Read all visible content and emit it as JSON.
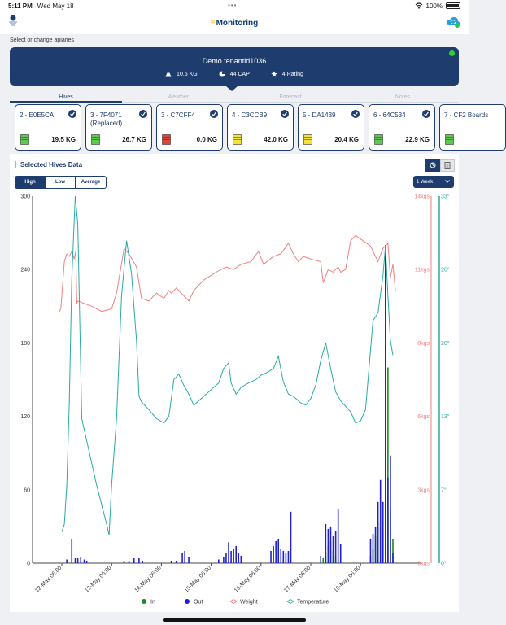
{
  "status_bar": {
    "time": "5:11 PM",
    "date": "Wed May 18",
    "battery": "100%"
  },
  "nav": {
    "title": "Monitoring",
    "title_prefix": "≡",
    "logo_icon": "apiary-logo-icon",
    "sync_icon": "cloud-sync-icon"
  },
  "apiary": {
    "select_label": "Select or change apiaries",
    "name": "Demo tenantid1036",
    "weight": "10.5 KG",
    "capacity": "44 CAP",
    "rating": "4 Rating",
    "status_color": "#2ed12e"
  },
  "tabs": [
    {
      "label": "Hives",
      "active": true
    },
    {
      "label": "Weather",
      "active": false
    },
    {
      "label": "Forecast",
      "active": false
    },
    {
      "label": "Notes",
      "active": false
    }
  ],
  "hives": [
    {
      "title": "2 - E0E5CA",
      "weight": "19.5 KG",
      "color": "#5ec94e",
      "checked": true
    },
    {
      "title": "3 - 7F4071 (Replaced)",
      "weight": "26.7 KG",
      "color": "#5ec94e",
      "checked": true
    },
    {
      "title": "3 - C7CFF4",
      "weight": "0.0 KG",
      "color": "#e2403a",
      "checked": true
    },
    {
      "title": "4 - C3CCB9",
      "weight": "42.0 KG",
      "color": "#f2e43a",
      "checked": true
    },
    {
      "title": "5 - DA1439",
      "weight": "20.4 KG",
      "color": "#f2e43a",
      "checked": true
    },
    {
      "title": "6 - 64C534",
      "weight": "22.9 KG",
      "color": "#5ec94e",
      "checked": true
    },
    {
      "title": "7 - CF2 Boards",
      "weight": "",
      "color": "#5ec94e",
      "checked": false
    }
  ],
  "chart_panel": {
    "title": "Selected Hives Data",
    "modes": [
      {
        "label": "High",
        "active": true
      },
      {
        "label": "Low",
        "active": false
      },
      {
        "label": "Average",
        "active": false
      }
    ],
    "period": "1 Week"
  },
  "chart_data": {
    "type": "line",
    "x_ticks": [
      "12-May 06:00",
      "13-May 06:00",
      "14-May 06:00",
      "15-May 06:00",
      "16-May 06:00",
      "17-May 06:00",
      "18-May 06:00"
    ],
    "y_left": {
      "ticks": [
        "0",
        "60",
        "120",
        "180",
        "240",
        "300"
      ],
      "range": [
        0,
        300
      ]
    },
    "y_weight": {
      "ticks": [
        "0kgs",
        "3kgs",
        "6kgs",
        "8kgs",
        "11kgs",
        "14kgs"
      ],
      "range": [
        0,
        14
      ]
    },
    "y_temp": {
      "ticks": [
        "0°",
        "7°",
        "13°",
        "20°",
        "26°",
        "33°"
      ],
      "range": [
        0,
        33
      ]
    },
    "series": [
      {
        "name": "In",
        "kind": "bar",
        "axis": "left",
        "color": "#1c8a1c",
        "points": [
          [
            5.25,
            4
          ],
          [
            5.3,
            8
          ],
          [
            5.35,
            14
          ],
          [
            5.4,
            18
          ],
          [
            5.45,
            10
          ],
          [
            5.5,
            6
          ],
          [
            6.2,
            6
          ],
          [
            6.25,
            12
          ],
          [
            6.3,
            22
          ],
          [
            6.35,
            34
          ],
          [
            6.4,
            30
          ],
          [
            6.45,
            26
          ],
          [
            6.5,
            36
          ],
          [
            6.55,
            160
          ],
          [
            6.6,
            45
          ],
          [
            6.65,
            20
          ]
        ]
      },
      {
        "name": "Out",
        "kind": "bar",
        "axis": "left",
        "color": "#2222cc",
        "points": [
          [
            0.1,
            3
          ],
          [
            0.2,
            20
          ],
          [
            0.27,
            4
          ],
          [
            0.32,
            4
          ],
          [
            0.38,
            5
          ],
          [
            0.45,
            3
          ],
          [
            0.5,
            2
          ],
          [
            1.25,
            2
          ],
          [
            1.35,
            2
          ],
          [
            1.45,
            4
          ],
          [
            1.55,
            4
          ],
          [
            1.62,
            2
          ],
          [
            2.2,
            2
          ],
          [
            2.3,
            2
          ],
          [
            2.42,
            8
          ],
          [
            2.47,
            10
          ],
          [
            2.55,
            5
          ],
          [
            3.15,
            3
          ],
          [
            3.25,
            5
          ],
          [
            3.3,
            8
          ],
          [
            3.35,
            17
          ],
          [
            3.4,
            10
          ],
          [
            3.45,
            12
          ],
          [
            3.5,
            14
          ],
          [
            3.55,
            8
          ],
          [
            3.6,
            6
          ],
          [
            4.2,
            10
          ],
          [
            4.25,
            14
          ],
          [
            4.3,
            18
          ],
          [
            4.35,
            20
          ],
          [
            4.4,
            12
          ],
          [
            4.45,
            10
          ],
          [
            4.5,
            8
          ],
          [
            4.55,
            10
          ],
          [
            4.6,
            42
          ],
          [
            5.2,
            6
          ],
          [
            5.3,
            32
          ],
          [
            5.35,
            28
          ],
          [
            5.4,
            30
          ],
          [
            5.45,
            22
          ],
          [
            5.5,
            26
          ],
          [
            5.55,
            44
          ],
          [
            5.6,
            16
          ],
          [
            6.2,
            20
          ],
          [
            6.25,
            24
          ],
          [
            6.3,
            30
          ],
          [
            6.35,
            50
          ],
          [
            6.4,
            68
          ],
          [
            6.45,
            50
          ],
          [
            6.5,
            260
          ],
          [
            6.55,
            70
          ],
          [
            6.6,
            88
          ],
          [
            6.65,
            8
          ]
        ]
      },
      {
        "name": "Weight",
        "kind": "line",
        "axis": "weight",
        "color": "#f08080",
        "points": [
          [
            -0.05,
            9.6
          ],
          [
            -0.02,
            9.7
          ],
          [
            0.05,
            11.5
          ],
          [
            0.1,
            11.8
          ],
          [
            0.15,
            11.7
          ],
          [
            0.2,
            11.9
          ],
          [
            0.25,
            11.6
          ],
          [
            0.28,
            11.9
          ],
          [
            0.3,
            9.9
          ],
          [
            0.32,
            10.0
          ],
          [
            0.6,
            9.8
          ],
          [
            0.8,
            9.6
          ],
          [
            1.0,
            9.7
          ],
          [
            1.1,
            10.3
          ],
          [
            1.25,
            12.0
          ],
          [
            1.35,
            11.8
          ],
          [
            1.5,
            11.3
          ],
          [
            1.6,
            10.1
          ],
          [
            1.75,
            10.0
          ],
          [
            1.9,
            10.3
          ],
          [
            2.05,
            10.1
          ],
          [
            2.15,
            10.4
          ],
          [
            2.2,
            10.3
          ],
          [
            2.3,
            10.5
          ],
          [
            2.35,
            10.4
          ],
          [
            2.45,
            10.2
          ],
          [
            2.55,
            10.0
          ],
          [
            2.65,
            10.4
          ],
          [
            2.85,
            10.8
          ],
          [
            3.1,
            11.1
          ],
          [
            3.3,
            11.3
          ],
          [
            3.45,
            11.2
          ],
          [
            3.6,
            11.4
          ],
          [
            3.8,
            11.5
          ],
          [
            3.95,
            11.9
          ],
          [
            4.05,
            11.4
          ],
          [
            4.25,
            11.7
          ],
          [
            4.4,
            11.8
          ],
          [
            4.55,
            12.2
          ],
          [
            4.65,
            11.8
          ],
          [
            4.75,
            11.5
          ],
          [
            4.85,
            11.7
          ],
          [
            5.0,
            11.6
          ],
          [
            5.2,
            11.5
          ],
          [
            5.25,
            10.7
          ],
          [
            5.35,
            11.2
          ],
          [
            5.45,
            11.1
          ],
          [
            5.55,
            11.3
          ],
          [
            5.6,
            11.1
          ],
          [
            5.7,
            11.2
          ],
          [
            5.8,
            12.3
          ],
          [
            5.9,
            12.5
          ],
          [
            6.05,
            12.3
          ],
          [
            6.2,
            12.1
          ],
          [
            6.35,
            11.5
          ],
          [
            6.45,
            12.0
          ],
          [
            6.55,
            12.2
          ],
          [
            6.6,
            10.9
          ],
          [
            6.65,
            11.4
          ],
          [
            6.7,
            10.4
          ]
        ]
      },
      {
        "name": "Temperature",
        "kind": "line",
        "axis": "temp",
        "color": "#2aaaa2",
        "points": [
          [
            0.0,
            2.8
          ],
          [
            0.05,
            3.5
          ],
          [
            0.1,
            7.0
          ],
          [
            0.15,
            14.5
          ],
          [
            0.2,
            25.5
          ],
          [
            0.27,
            33.0
          ],
          [
            0.32,
            30.5
          ],
          [
            0.4,
            13.0
          ],
          [
            0.5,
            11.0
          ],
          [
            0.7,
            7.0
          ],
          [
            0.9,
            3.5
          ],
          [
            0.95,
            2.5
          ],
          [
            1.0,
            7.0
          ],
          [
            1.1,
            13.0
          ],
          [
            1.2,
            24.0
          ],
          [
            1.3,
            29.0
          ],
          [
            1.4,
            26.0
          ],
          [
            1.5,
            20.0
          ],
          [
            1.55,
            15.0
          ],
          [
            1.6,
            14.5
          ],
          [
            1.75,
            13.8
          ],
          [
            1.9,
            13.0
          ],
          [
            2.05,
            12.6
          ],
          [
            2.15,
            13.2
          ],
          [
            2.25,
            16.5
          ],
          [
            2.35,
            17.0
          ],
          [
            2.45,
            16.0
          ],
          [
            2.55,
            15.2
          ],
          [
            2.65,
            14.2
          ],
          [
            2.8,
            14.8
          ],
          [
            3.0,
            15.6
          ],
          [
            3.15,
            16.2
          ],
          [
            3.25,
            17.5
          ],
          [
            3.35,
            18.0
          ],
          [
            3.4,
            16.2
          ],
          [
            3.5,
            15.2
          ],
          [
            3.6,
            15.8
          ],
          [
            3.75,
            16.2
          ],
          [
            3.9,
            16.5
          ],
          [
            4.0,
            16.9
          ],
          [
            4.15,
            17.2
          ],
          [
            4.25,
            17.5
          ],
          [
            4.35,
            18.6
          ],
          [
            4.45,
            16.3
          ],
          [
            4.55,
            15.2
          ],
          [
            4.65,
            15.0
          ],
          [
            4.8,
            14.4
          ],
          [
            4.9,
            14.2
          ],
          [
            5.0,
            14.8
          ],
          [
            5.1,
            16.0
          ],
          [
            5.2,
            18.2
          ],
          [
            5.3,
            19.8
          ],
          [
            5.4,
            17.5
          ],
          [
            5.5,
            15.4
          ],
          [
            5.6,
            14.6
          ],
          [
            5.8,
            13.6
          ],
          [
            5.9,
            12.6
          ],
          [
            6.0,
            12.8
          ],
          [
            6.1,
            13.8
          ],
          [
            6.25,
            21.8
          ],
          [
            6.35,
            22.5
          ],
          [
            6.45,
            25.8
          ],
          [
            6.5,
            28.5
          ],
          [
            6.55,
            24.0
          ],
          [
            6.6,
            20.0
          ],
          [
            6.65,
            18.7
          ]
        ]
      }
    ]
  }
}
